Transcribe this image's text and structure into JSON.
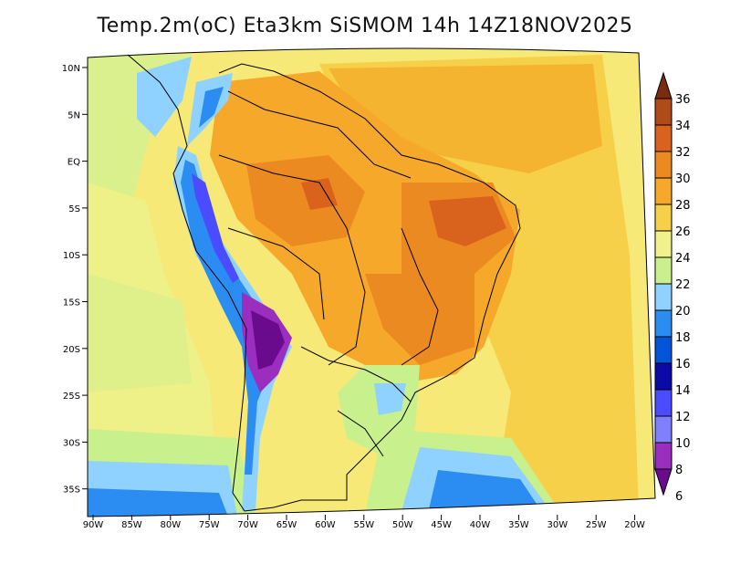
{
  "title": "Temp.2m(oC) Eta3km SiSMOM 14h 14Z18NOV2025",
  "lat_ticks": [
    "10N",
    "5N",
    "EQ",
    "5S",
    "10S",
    "15S",
    "20S",
    "25S",
    "30S",
    "35S"
  ],
  "lon_ticks": [
    "90W",
    "85W",
    "80W",
    "75W",
    "70W",
    "65W",
    "60W",
    "55W",
    "50W",
    "45W",
    "40W",
    "35W",
    "30W",
    "25W",
    "20W"
  ],
  "colorbar": {
    "levels": [
      "6",
      "8",
      "10",
      "12",
      "14",
      "16",
      "18",
      "20",
      "22",
      "24",
      "26",
      "28",
      "30",
      "32",
      "34",
      "36"
    ],
    "colors": [
      "#6a0a8c",
      "#9b2dbf",
      "#8080ff",
      "#4b4bff",
      "#0a0aa6",
      "#0055d9",
      "#2b8cf2",
      "#8fd2ff",
      "#c8f08c",
      "#f0f08c",
      "#f7d04a",
      "#f5a82a",
      "#ec8a22",
      "#d9621c",
      "#b04a18",
      "#7a2c10"
    ]
  }
}
